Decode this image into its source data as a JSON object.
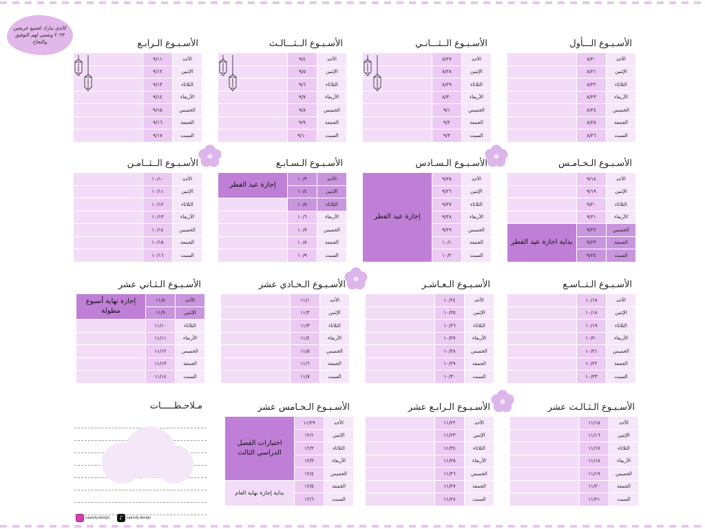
{
  "header": {
    "greeting": "كاندي تبارك لجميع خريجين ٢٠٢٣ وتتمنى لهم التوفيق والنجاح"
  },
  "day_labels": [
    "الأحد",
    "الإثنين",
    "الثلاثاء",
    "الأربعاء",
    "الخميس",
    "الجمعة",
    "السبت"
  ],
  "weeks": [
    {
      "title": "الأسـبـوع الـــأول",
      "dates": [
        "٨/٢٠",
        "٨/٢١",
        "٨/٢٢",
        "٨/٢٣",
        "٨/٢٤",
        "٨/٢٥",
        "٨/٢٦"
      ]
    },
    {
      "title": "الأسـبـوع الــثـــانـي",
      "dates": [
        "٨/٢٧",
        "٨/٢٨",
        "٨/٢٩",
        "٨/٣٠",
        "٩/١",
        "٩/٢",
        "٩/٣"
      ]
    },
    {
      "title": "الأسـبـوع الــثـــالـث",
      "dates": [
        "٩/٤",
        "٩/٥",
        "٩/٦",
        "٩/٧",
        "٩/٨",
        "٩/٩",
        "٩/١٠"
      ]
    },
    {
      "title": "الأسـبـوع الـرابـع",
      "dates": [
        "٩/١١",
        "٩/١٢",
        "٩/١٣",
        "٩/١٤",
        "٩/١٥",
        "٩/١٦",
        "٩/١٧"
      ]
    },
    {
      "title": "الأسـبـوع الـخـامـس",
      "dates": [
        "٩/١٨",
        "٩/١٩",
        "٩/٢٠",
        "٩/٢١",
        "٩/٢٢",
        "٩/٢٣",
        "٩/٢٤"
      ],
      "note": "بداية اجازة عيد الفطر"
    },
    {
      "title": "الأسـبـوع الـسـادس",
      "dates": [
        "٩/٢٥",
        "٩/٢٦",
        "٩/٢٧",
        "٩/٢٨",
        "٩/٢٩",
        "١٠/١",
        "١٠/٢"
      ],
      "note": "إجازة عيد الفطر"
    },
    {
      "title": "الأسـبـوع الـسـابـع",
      "dates": [
        "١٠/٣",
        "١٠/٤",
        "١٠/٥",
        "١٠/٦",
        "١٠/٧",
        "١٠/٨",
        "١٠/٩"
      ],
      "note": "إجازة عيد الفطر"
    },
    {
      "title": "الأسـبـوع الــثــامـن",
      "dates": [
        "١٠/١٠",
        "١٠/١١",
        "١٠/١٢",
        "١٠/١٣",
        "١٠/١٤",
        "١٠/١٥",
        "١٠/١٦"
      ]
    },
    {
      "title": "الأسـبـوع الـتــاسـع",
      "dates": [
        "١٠/١٧",
        "١٠/١٨",
        "١٠/١٩",
        "١٠/٢٠",
        "١٠/٢١",
        "١٠/٢٢",
        "١٠/٢٣"
      ]
    },
    {
      "title": "الأسـبـوع الـعـاشـر",
      "dates": [
        "١٠/٢٤",
        "١٠/٢٥",
        "١٠/٢٦",
        "١٠/٢٧",
        "١٠/٢٨",
        "١٠/٢٩",
        "١٠/٣٠"
      ]
    },
    {
      "title": "الأسـبـوع الـحـادي عشر",
      "dates": [
        "١١/١",
        "١١/٢",
        "١١/٣",
        "١١/٤",
        "١١/٥",
        "١١/٦",
        "١١/٧"
      ]
    },
    {
      "title": "الأسـبـوع الـثـاني عشر",
      "dates": [
        "١١/٨",
        "١١/٩",
        "١١/١٠",
        "١١/١١",
        "١١/١٢",
        "١١/١٣",
        "١١/١٤"
      ],
      "note": "إجازة نهاية أسبوع مطولة"
    },
    {
      "title": "الأسـبـوع الـثـالـث عشر",
      "dates": [
        "١١/١٥",
        "١١/١٦",
        "١١/١٧",
        "١١/١٨",
        "١١/١٩",
        "١١/٢٠",
        "١١/٢١"
      ]
    },
    {
      "title": "الأسـبـوع الـرابـع عشر",
      "dates": [
        "١١/٢٢",
        "١١/٢٣",
        "١١/٢٤",
        "١١/٢٥",
        "١١/٢٦",
        "١١/٢٧",
        "١١/٢٨"
      ]
    },
    {
      "title": "الأسـبـوع الـخـامس عشر",
      "dates": [
        "١١/٢٩",
        "١٢/١",
        "١٢/٢",
        "١٢/٣",
        "١٢/٤",
        "١٢/٥",
        "١٢/٦"
      ],
      "note": "اختبارات الفصل الدراسي الثالث",
      "note2": "بداية إجازة نهاية العام"
    }
  ],
  "notes": {
    "title": "مـلاحـظـــــات"
  },
  "social": {
    "instagram": "caandy.design",
    "tiktok": "caandy.design"
  },
  "colors": {
    "accent": "#c07fd6",
    "date_cell": "#eccaf3",
    "row_cell": "#f6e6fa",
    "flower": "#dcb6ea"
  }
}
